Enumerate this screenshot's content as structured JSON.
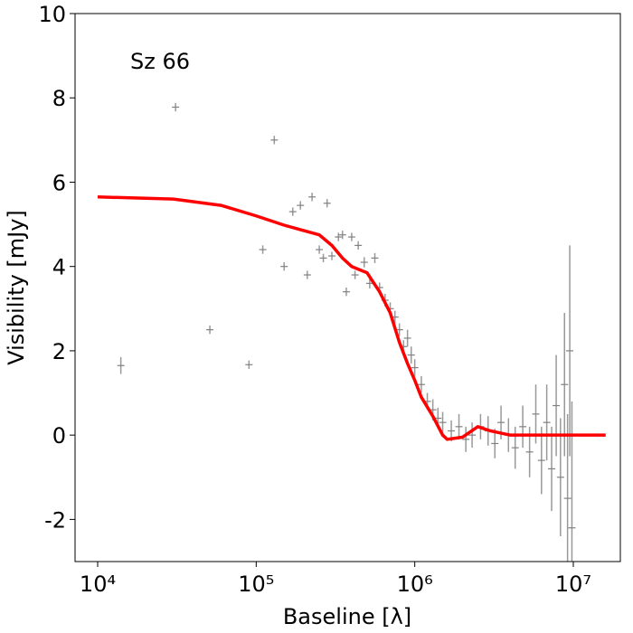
{
  "chart_data": {
    "type": "scatter",
    "annotation": "Sz 66",
    "annotation_color": "#ff0000",
    "xlabel": "Baseline [λ]",
    "ylabel": "Visibility [mJy]",
    "xscale": "log",
    "xlim": [
      7200,
      19800000
    ],
    "ylim": [
      -3,
      10
    ],
    "xticks": [
      {
        "value": 10000,
        "label": "10⁴"
      },
      {
        "value": 100000,
        "label": "10⁵"
      },
      {
        "value": 1000000,
        "label": "10⁶"
      },
      {
        "value": 10000000,
        "label": "10⁷"
      }
    ],
    "yticks": [
      -2,
      0,
      2,
      4,
      6,
      8,
      10
    ],
    "points": {
      "color": "#808080",
      "x": [
        14000,
        31000,
        51000,
        90000,
        110000,
        130000,
        150000,
        170000,
        190000,
        210000,
        225000,
        250000,
        265000,
        280000,
        300000,
        330000,
        350000,
        370000,
        400000,
        420000,
        440000,
        480000,
        520000,
        560000,
        600000,
        650000,
        700000,
        750000,
        800000,
        850000,
        900000,
        950000,
        1000000,
        1100000,
        1200000,
        1300000,
        1400000,
        1500000,
        1700000,
        1900000,
        2100000,
        2300000,
        2600000,
        2900000,
        3200000,
        3500000,
        3900000,
        4300000,
        4800000,
        5300000,
        5800000,
        6300000,
        6800000,
        7300000,
        7800000,
        8300000,
        8800000,
        9200000,
        9500000,
        9800000
      ],
      "values": [
        1.65,
        7.78,
        2.5,
        1.67,
        4.4,
        7.0,
        4.0,
        5.3,
        5.45,
        3.8,
        5.65,
        4.4,
        4.2,
        5.5,
        4.25,
        4.7,
        4.75,
        3.4,
        4.7,
        3.8,
        4.5,
        4.1,
        3.6,
        4.2,
        3.5,
        3.2,
        3.0,
        2.8,
        2.5,
        2.1,
        2.3,
        1.9,
        1.6,
        1.2,
        0.8,
        0.6,
        0.4,
        0.3,
        0.1,
        0.2,
        -0.1,
        0.0,
        0.2,
        0.1,
        -0.2,
        0.3,
        0.0,
        -0.3,
        0.2,
        -0.4,
        0.5,
        -0.6,
        0.3,
        -0.8,
        0.7,
        -1.0,
        1.2,
        -1.5,
        2.0,
        -2.2
      ],
      "errors": [
        0.2,
        0.1,
        0.1,
        0.1,
        0.1,
        0.1,
        0.1,
        0.1,
        0.1,
        0.1,
        0.1,
        0.1,
        0.1,
        0.1,
        0.1,
        0.1,
        0.1,
        0.1,
        0.1,
        0.1,
        0.1,
        0.12,
        0.12,
        0.12,
        0.12,
        0.15,
        0.15,
        0.15,
        0.15,
        0.15,
        0.2,
        0.2,
        0.2,
        0.2,
        0.2,
        0.25,
        0.25,
        0.25,
        0.25,
        0.3,
        0.3,
        0.3,
        0.3,
        0.35,
        0.35,
        0.4,
        0.4,
        0.5,
        0.5,
        0.6,
        0.7,
        0.8,
        0.9,
        1.0,
        1.2,
        1.4,
        1.7,
        2.0,
        2.5,
        3.0
      ]
    },
    "model": {
      "color": "#ff0000",
      "x": [
        10000,
        30000,
        60000,
        100000,
        150000,
        200000,
        250000,
        300000,
        350000,
        400000,
        500000,
        600000,
        700000,
        800000,
        900000,
        1000000,
        1100000,
        1300000,
        1500000,
        1600000,
        2000000,
        2500000,
        3000000,
        4000000,
        6000000,
        10000000,
        16000000
      ],
      "values": [
        5.65,
        5.6,
        5.45,
        5.2,
        4.98,
        4.85,
        4.75,
        4.5,
        4.2,
        4.0,
        3.85,
        3.4,
        2.9,
        2.2,
        1.7,
        1.3,
        0.9,
        0.45,
        0.0,
        -0.1,
        -0.05,
        0.2,
        0.1,
        0.0,
        0.0,
        0.0,
        0.0
      ]
    }
  }
}
